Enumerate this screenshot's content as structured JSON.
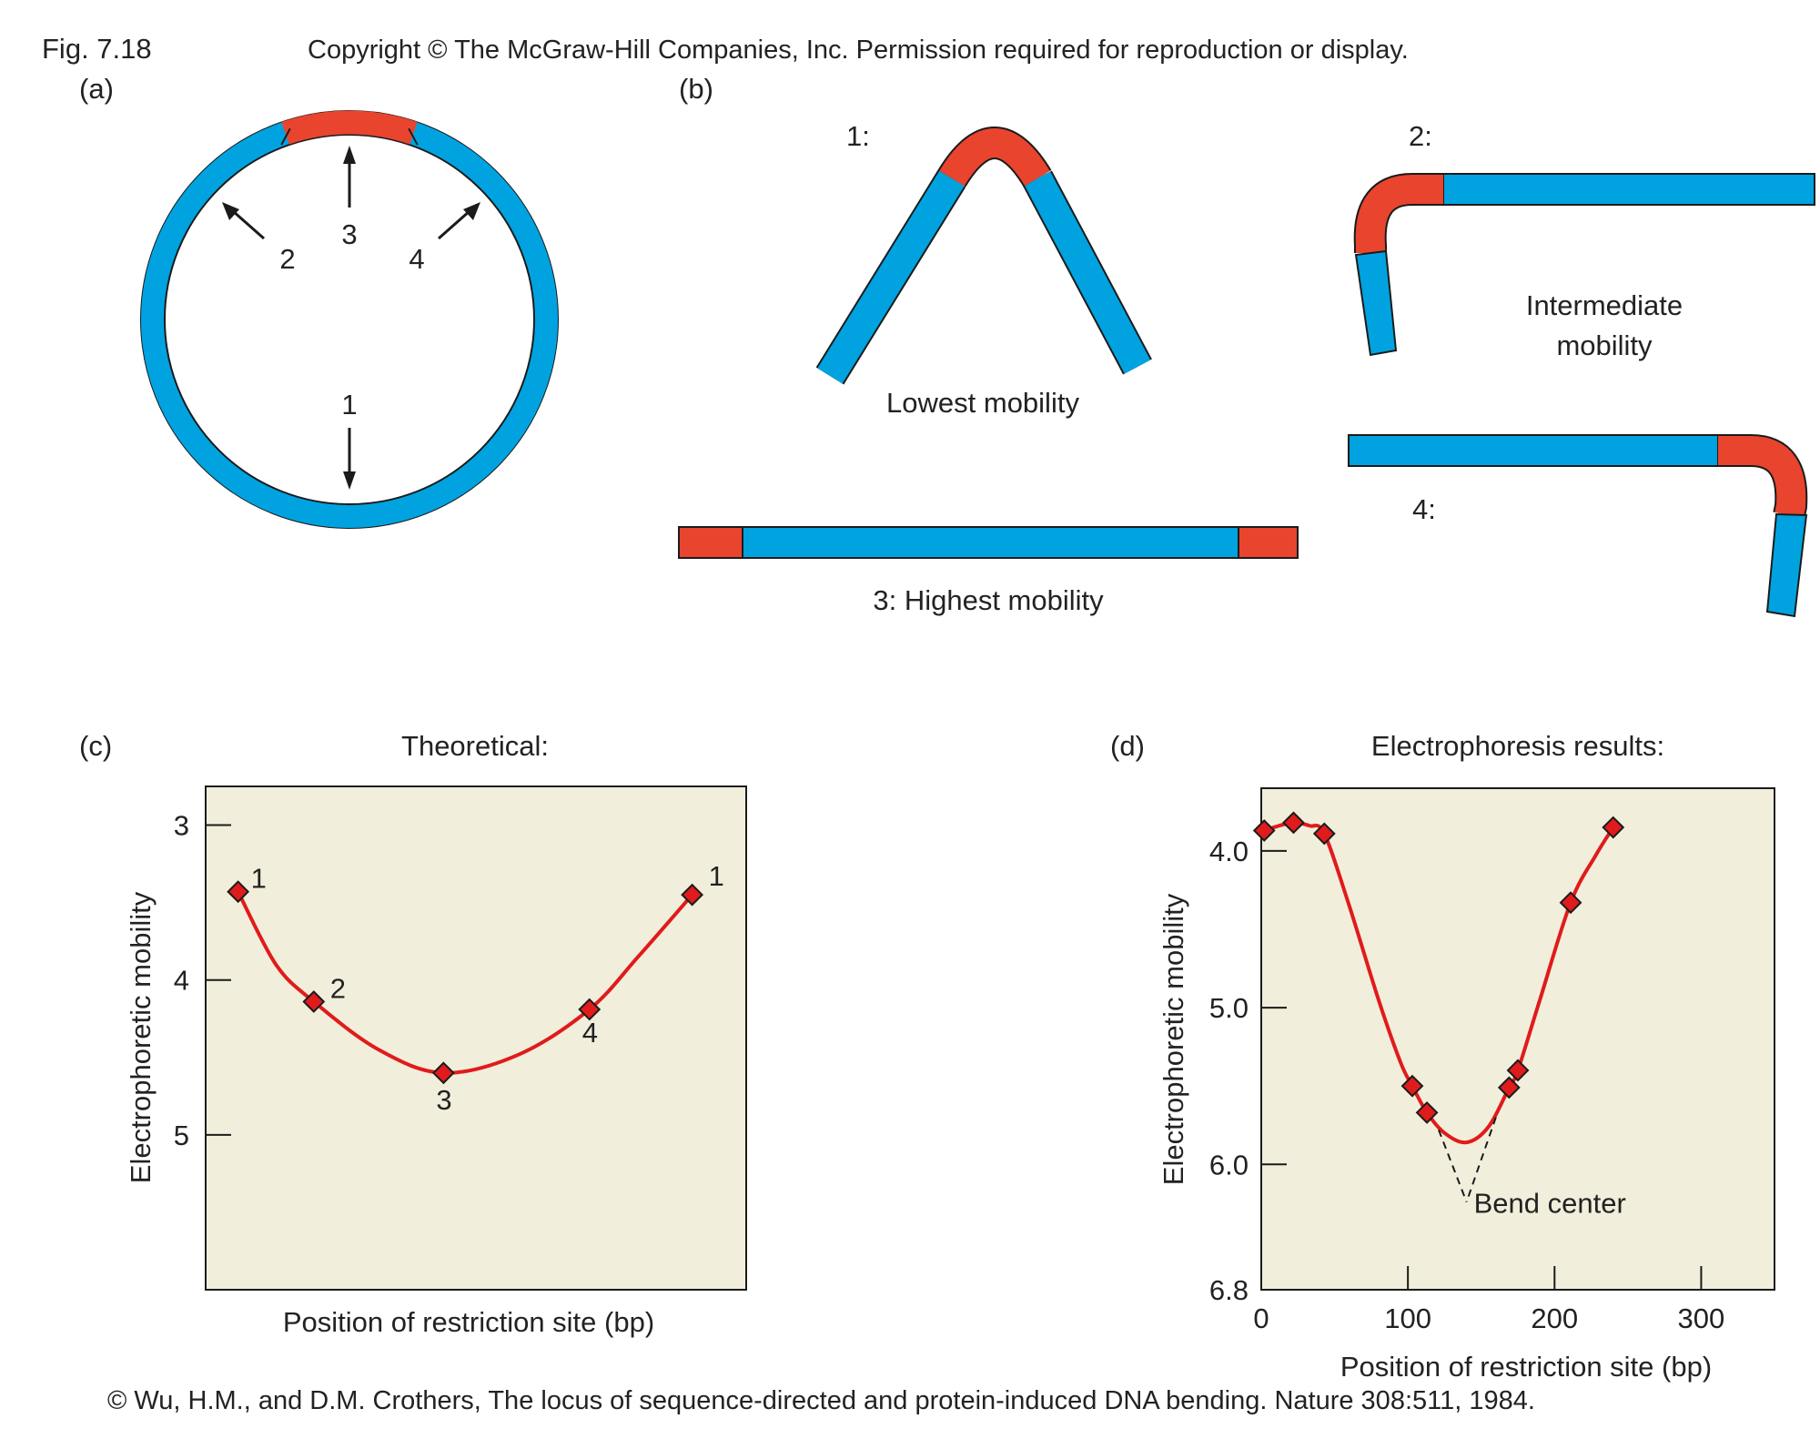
{
  "header": {
    "fig_label": "Fig. 7.18",
    "copyright": "Copyright © The McGraw-Hill Companies, Inc. Permission required for reproduction or display."
  },
  "panel_a": {
    "label": "(a)",
    "arrows": [
      "1",
      "2",
      "3",
      "4"
    ]
  },
  "panel_b": {
    "label": "(b)",
    "frag1_label": "1:",
    "frag1_caption": "Lowest  mobility",
    "frag2_label": "2:",
    "frag2_caption_line1": "Intermediate",
    "frag2_caption_line2": "mobility",
    "frag3_caption": "3: Highest mobility",
    "frag4_label": "4:"
  },
  "panel_c": {
    "label": "(c)",
    "title": "Theoretical:"
  },
  "panel_d": {
    "label": "(d)",
    "title": "Electrophoresis results:",
    "annotation": "Bend center"
  },
  "footer": {
    "citation": "© Wu, H.M., and D.M. Crothers, The locus of sequence-directed and  protein-induced DNA  bending. Nature 308:511, 1984."
  },
  "colors": {
    "dna": "#00a3e0",
    "bend": "#e8442e",
    "curve": "#e01b1b",
    "plot_bg": "#f1eedc"
  },
  "chart_data": [
    {
      "type": "line",
      "title": "Theoretical:",
      "xlabel": "Position of restriction site (bp)",
      "ylabel": "Electrophoretic mobility",
      "y_inverted": true,
      "ylim": [
        2.75,
        6.0
      ],
      "yticks": [
        3,
        4,
        5
      ],
      "x_ticks_shown": false,
      "xlim": [
        0,
        1
      ],
      "points": [
        {
          "x": 0.06,
          "y": 3.43,
          "label": "1"
        },
        {
          "x": 0.2,
          "y": 4.14,
          "label": "2"
        },
        {
          "x": 0.44,
          "y": 4.6,
          "label": "3"
        },
        {
          "x": 0.71,
          "y": 4.19,
          "label": "4"
        },
        {
          "x": 0.9,
          "y": 3.45,
          "label": "1"
        }
      ],
      "curve": [
        {
          "x": 0.06,
          "y": 3.43
        },
        {
          "x": 0.13,
          "y": 3.9
        },
        {
          "x": 0.2,
          "y": 4.14
        },
        {
          "x": 0.32,
          "y": 4.45
        },
        {
          "x": 0.44,
          "y": 4.6
        },
        {
          "x": 0.58,
          "y": 4.48
        },
        {
          "x": 0.71,
          "y": 4.19
        },
        {
          "x": 0.8,
          "y": 3.85
        },
        {
          "x": 0.9,
          "y": 3.45
        }
      ]
    },
    {
      "type": "line",
      "title": "Electrophoresis results:",
      "xlabel": "Position of restriction site (bp)",
      "ylabel": "Electrophoretic mobility",
      "y_inverted": true,
      "xlim": [
        0,
        350
      ],
      "ylim": [
        3.6,
        6.8
      ],
      "xticks": [
        0,
        100,
        200,
        300
      ],
      "ytick_labels": [
        "4.0",
        "5.0",
        "6.0",
        "6.8"
      ],
      "yticks": [
        4.0,
        5.0,
        6.0,
        6.8
      ],
      "points": [
        {
          "x": 2,
          "y": 3.87
        },
        {
          "x": 22,
          "y": 3.82
        },
        {
          "x": 43,
          "y": 3.89
        },
        {
          "x": 103,
          "y": 5.5
        },
        {
          "x": 113,
          "y": 5.67
        },
        {
          "x": 169,
          "y": 5.51
        },
        {
          "x": 175,
          "y": 5.4
        },
        {
          "x": 211,
          "y": 4.33
        },
        {
          "x": 240,
          "y": 3.85
        }
      ],
      "curve": [
        {
          "x": 2,
          "y": 3.87
        },
        {
          "x": 12,
          "y": 3.84
        },
        {
          "x": 22,
          "y": 3.82
        },
        {
          "x": 33,
          "y": 3.84
        },
        {
          "x": 43,
          "y": 3.89
        },
        {
          "x": 60,
          "y": 4.35
        },
        {
          "x": 80,
          "y": 4.95
        },
        {
          "x": 95,
          "y": 5.35
        },
        {
          "x": 103,
          "y": 5.5
        },
        {
          "x": 113,
          "y": 5.67
        },
        {
          "x": 125,
          "y": 5.8
        },
        {
          "x": 140,
          "y": 5.86
        },
        {
          "x": 155,
          "y": 5.76
        },
        {
          "x": 169,
          "y": 5.51
        },
        {
          "x": 175,
          "y": 5.4
        },
        {
          "x": 190,
          "y": 4.95
        },
        {
          "x": 211,
          "y": 4.33
        },
        {
          "x": 228,
          "y": 4.03
        },
        {
          "x": 240,
          "y": 3.85
        }
      ],
      "bend_center_x": 140
    }
  ]
}
